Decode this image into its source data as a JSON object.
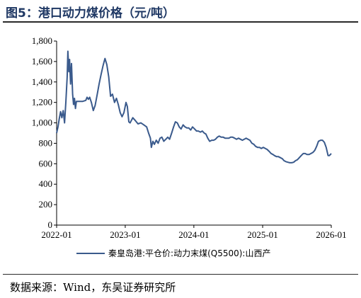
{
  "header": {
    "title": "图5：港口动力煤价格（元/吨）"
  },
  "footer": {
    "source": "数据来源：Wind，东吴证券研究所"
  },
  "colors": {
    "line": "#3a5a8c",
    "axis": "#000000"
  },
  "chart_data": {
    "type": "line",
    "title": "图5：港口动力煤价格（元/吨）",
    "xlabel": "",
    "ylabel": "",
    "ylim": [
      0,
      1800
    ],
    "y_ticks": [
      0,
      200,
      400,
      600,
      800,
      1000,
      1200,
      1400,
      1600,
      1800
    ],
    "y_tick_labels": [
      "0",
      "200",
      "400",
      "600",
      "800",
      "1,000",
      "1,200",
      "1,400",
      "1,600",
      "1,800"
    ],
    "xlim": [
      "2022-01-01",
      "2026-01-01"
    ],
    "x_tick_labels": [
      "2022-01",
      "2023-01",
      "2024-01",
      "2025-01",
      "2026-01"
    ],
    "x_ticks": [
      "2022-01-01",
      "2023-01-01",
      "2024-01-01",
      "2025-01-01",
      "2026-01-01"
    ],
    "legend_position": "bottom",
    "grid": false,
    "series": [
      {
        "name": "秦皇岛港:平仓价:动力末煤(Q5500):山西产",
        "points": [
          [
            "2022-01-01",
            900
          ],
          [
            "2022-01-08",
            960
          ],
          [
            "2022-01-15",
            1040
          ],
          [
            "2022-01-22",
            1110
          ],
          [
            "2022-01-29",
            1050
          ],
          [
            "2022-02-05",
            1120
          ],
          [
            "2022-02-12",
            1000
          ],
          [
            "2022-02-19",
            1200
          ],
          [
            "2022-02-26",
            1450
          ],
          [
            "2022-03-02",
            1700
          ],
          [
            "2022-03-07",
            1500
          ],
          [
            "2022-03-11",
            1620
          ],
          [
            "2022-03-16",
            1380
          ],
          [
            "2022-03-21",
            1580
          ],
          [
            "2022-03-27",
            1280
          ],
          [
            "2022-04-01",
            1180
          ],
          [
            "2022-04-06",
            1240
          ],
          [
            "2022-04-11",
            1140
          ],
          [
            "2022-04-16",
            1210
          ],
          [
            "2022-04-23",
            1210
          ],
          [
            "2022-05-05",
            1210
          ],
          [
            "2022-05-20",
            1210
          ],
          [
            "2022-06-05",
            1220
          ],
          [
            "2022-06-12",
            1250
          ],
          [
            "2022-06-19",
            1230
          ],
          [
            "2022-06-26",
            1250
          ],
          [
            "2022-07-05",
            1200
          ],
          [
            "2022-07-15",
            1120
          ],
          [
            "2022-07-25",
            1170
          ],
          [
            "2022-08-05",
            1280
          ],
          [
            "2022-08-15",
            1380
          ],
          [
            "2022-08-25",
            1470
          ],
          [
            "2022-09-05",
            1560
          ],
          [
            "2022-09-15",
            1630
          ],
          [
            "2022-09-25",
            1570
          ],
          [
            "2022-10-05",
            1450
          ],
          [
            "2022-10-15",
            1260
          ],
          [
            "2022-10-25",
            1280
          ],
          [
            "2022-11-05",
            1200
          ],
          [
            "2022-11-15",
            1240
          ],
          [
            "2022-11-25",
            1180
          ],
          [
            "2022-12-05",
            1100
          ],
          [
            "2022-12-15",
            1060
          ],
          [
            "2022-12-25",
            1100
          ],
          [
            "2023-01-05",
            1200
          ],
          [
            "2023-01-12",
            1160
          ],
          [
            "2023-01-20",
            1010
          ],
          [
            "2023-01-27",
            1000
          ],
          [
            "2023-02-10",
            1050
          ],
          [
            "2023-02-25",
            1020
          ],
          [
            "2023-03-10",
            990
          ],
          [
            "2023-03-25",
            1000
          ],
          [
            "2023-04-10",
            980
          ],
          [
            "2023-04-25",
            960
          ],
          [
            "2023-05-05",
            900
          ],
          [
            "2023-05-15",
            850
          ],
          [
            "2023-05-20",
            760
          ],
          [
            "2023-05-28",
            820
          ],
          [
            "2023-06-05",
            790
          ],
          [
            "2023-06-15",
            830
          ],
          [
            "2023-06-25",
            800
          ],
          [
            "2023-07-05",
            850
          ],
          [
            "2023-07-15",
            860
          ],
          [
            "2023-07-25",
            820
          ],
          [
            "2023-08-05",
            840
          ],
          [
            "2023-08-15",
            860
          ],
          [
            "2023-08-25",
            840
          ],
          [
            "2023-09-05",
            900
          ],
          [
            "2023-09-15",
            960
          ],
          [
            "2023-09-25",
            1010
          ],
          [
            "2023-10-05",
            1000
          ],
          [
            "2023-10-15",
            960
          ],
          [
            "2023-10-25",
            940
          ],
          [
            "2023-11-05",
            980
          ],
          [
            "2023-11-15",
            960
          ],
          [
            "2023-11-25",
            950
          ],
          [
            "2023-12-05",
            950
          ],
          [
            "2023-12-15",
            930
          ],
          [
            "2023-12-25",
            960
          ],
          [
            "2024-01-05",
            940
          ],
          [
            "2024-01-15",
            920
          ],
          [
            "2024-01-25",
            920
          ],
          [
            "2024-02-05",
            910
          ],
          [
            "2024-02-15",
            920
          ],
          [
            "2024-02-25",
            900
          ],
          [
            "2024-03-05",
            890
          ],
          [
            "2024-03-15",
            850
          ],
          [
            "2024-03-25",
            820
          ],
          [
            "2024-04-05",
            830
          ],
          [
            "2024-04-15",
            830
          ],
          [
            "2024-04-25",
            840
          ],
          [
            "2024-05-05",
            860
          ],
          [
            "2024-05-15",
            870
          ],
          [
            "2024-05-25",
            860
          ],
          [
            "2024-06-05",
            860
          ],
          [
            "2024-06-15",
            850
          ],
          [
            "2024-06-25",
            850
          ],
          [
            "2024-07-05",
            850
          ],
          [
            "2024-07-15",
            860
          ],
          [
            "2024-07-25",
            860
          ],
          [
            "2024-08-05",
            850
          ],
          [
            "2024-08-15",
            840
          ],
          [
            "2024-08-25",
            850
          ],
          [
            "2024-09-05",
            840
          ],
          [
            "2024-09-15",
            830
          ],
          [
            "2024-09-25",
            840
          ],
          [
            "2024-10-05",
            850
          ],
          [
            "2024-10-15",
            840
          ],
          [
            "2024-10-25",
            830
          ],
          [
            "2024-11-05",
            800
          ],
          [
            "2024-11-15",
            790
          ],
          [
            "2024-11-25",
            770
          ],
          [
            "2024-12-05",
            760
          ],
          [
            "2024-12-15",
            760
          ],
          [
            "2024-12-25",
            750
          ],
          [
            "2025-01-05",
            760
          ],
          [
            "2025-01-15",
            750
          ],
          [
            "2025-01-25",
            740
          ],
          [
            "2025-02-05",
            720
          ],
          [
            "2025-02-15",
            700
          ],
          [
            "2025-02-25",
            690
          ],
          [
            "2025-03-05",
            680
          ],
          [
            "2025-03-15",
            670
          ],
          [
            "2025-03-25",
            670
          ],
          [
            "2025-04-05",
            660
          ],
          [
            "2025-04-15",
            650
          ],
          [
            "2025-04-25",
            630
          ],
          [
            "2025-05-05",
            620
          ],
          [
            "2025-05-15",
            615
          ],
          [
            "2025-05-25",
            610
          ],
          [
            "2025-06-05",
            610
          ],
          [
            "2025-06-15",
            615
          ],
          [
            "2025-06-25",
            630
          ],
          [
            "2025-07-05",
            640
          ],
          [
            "2025-07-15",
            660
          ],
          [
            "2025-07-25",
            680
          ],
          [
            "2025-08-05",
            700
          ],
          [
            "2025-08-15",
            700
          ],
          [
            "2025-08-25",
            690
          ],
          [
            "2025-09-05",
            690
          ],
          [
            "2025-09-15",
            700
          ],
          [
            "2025-09-25",
            710
          ],
          [
            "2025-10-05",
            730
          ],
          [
            "2025-10-15",
            770
          ],
          [
            "2025-10-25",
            820
          ],
          [
            "2025-11-05",
            830
          ],
          [
            "2025-11-15",
            830
          ],
          [
            "2025-11-25",
            810
          ],
          [
            "2025-12-05",
            760
          ],
          [
            "2025-12-15",
            680
          ],
          [
            "2025-12-22",
            680
          ],
          [
            "2026-01-01",
            700
          ]
        ]
      }
    ]
  }
}
